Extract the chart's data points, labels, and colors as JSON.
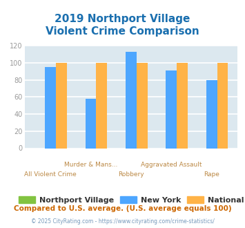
{
  "title_line1": "2019 Northport Village",
  "title_line2": "Violent Crime Comparison",
  "categories": [
    "All Violent Crime",
    "Murder & Mans...",
    "Robbery",
    "Aggravated Assault",
    "Rape"
  ],
  "northport_village": [
    0,
    0,
    0,
    0,
    0
  ],
  "new_york": [
    95,
    58,
    113,
    91,
    80
  ],
  "national": [
    100,
    100,
    100,
    100,
    100
  ],
  "bar_colors": {
    "northport_village": "#82c341",
    "new_york": "#4da6ff",
    "national": "#ffb347"
  },
  "ylim": [
    0,
    120
  ],
  "yticks": [
    0,
    20,
    40,
    60,
    80,
    100,
    120
  ],
  "legend_labels": [
    "Northport Village",
    "New York",
    "National"
  ],
  "footnote1": "Compared to U.S. average. (U.S. average equals 100)",
  "footnote2": "© 2025 CityRating.com - https://www.cityrating.com/crime-statistics/",
  "title_color": "#1a6faf",
  "footnote1_color": "#cc6600",
  "footnote2_color": "#7799bb",
  "bg_color": "#dce8ef",
  "axis_label_color": "#bb8844",
  "tick_label_color": "#999999",
  "grid_color": "#ffffff"
}
